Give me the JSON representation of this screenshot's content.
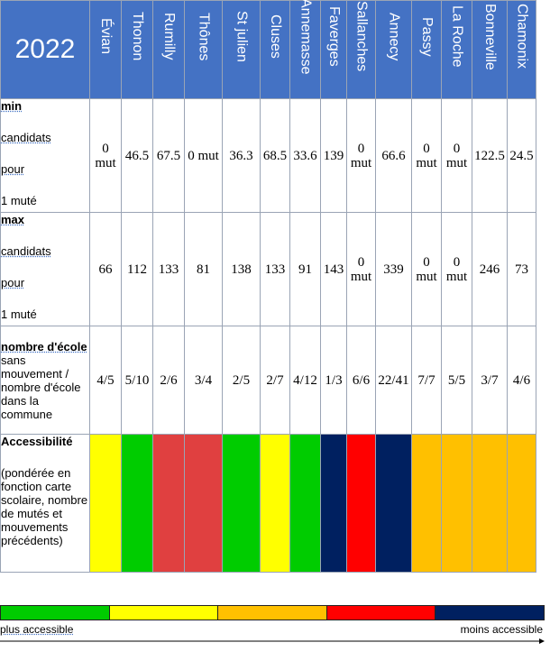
{
  "year": "2022",
  "colors": {
    "header_bg": "#4472c4",
    "green": "#00cc00",
    "yellow": "#ffff00",
    "orange": "#ffc000",
    "red_light": "#e04040",
    "red": "#ff0000",
    "navy": "#002060"
  },
  "towns": [
    "Évian",
    "Thonon",
    "Rumilly",
    "Thônes",
    "St julien",
    "Cluses",
    "Annemasse",
    "Faverges",
    "Sallanches",
    "Annecy",
    "Passy",
    "La Roche",
    "Bonneville",
    "Chamonix"
  ],
  "rows": {
    "min": {
      "title": "min",
      "line2": "candidats",
      "line3": "pour",
      "line4": "1 muté",
      "values": [
        "0 mut",
        "46.5",
        "67.5",
        "0 mut",
        "36.3",
        "68.5",
        "33.6",
        "139",
        "0 mut",
        "66.6",
        "0 mut",
        "0 mut",
        "122.5",
        "24.5"
      ]
    },
    "max": {
      "title": "max",
      "line2": "candidats",
      "line3": "pour",
      "line4": "1 muté",
      "values": [
        "66",
        "112",
        "133",
        "81",
        "138",
        "133",
        "91",
        "143",
        "0 mut",
        "339",
        "0 mut",
        "0 mut",
        "246",
        "73"
      ]
    },
    "schools": {
      "title": "nombre d'école",
      "rest": "sans mouvement / nombre d'école dans la commune",
      "values": [
        "4/5",
        "5/10",
        "2/6",
        "3/4",
        "2/5",
        "2/7",
        "4/12",
        "1/3",
        "6/6",
        "22/41",
        "7/7",
        "5/5",
        "3/7",
        "4/6"
      ]
    },
    "access": {
      "title": "Accessibilité",
      "note": "(pondérée en fonction carte scolaire, nombre de mutés et mouvements précédents)",
      "colors": [
        "yellow",
        "green",
        "red_light",
        "red_light",
        "green",
        "yellow",
        "green",
        "navy",
        "red",
        "navy",
        "orange",
        "orange",
        "orange",
        "orange"
      ]
    }
  },
  "legend": {
    "scale": [
      "green",
      "yellow",
      "orange",
      "red",
      "navy"
    ],
    "left_label": "plus accessible",
    "right_label": "moins accessible"
  }
}
